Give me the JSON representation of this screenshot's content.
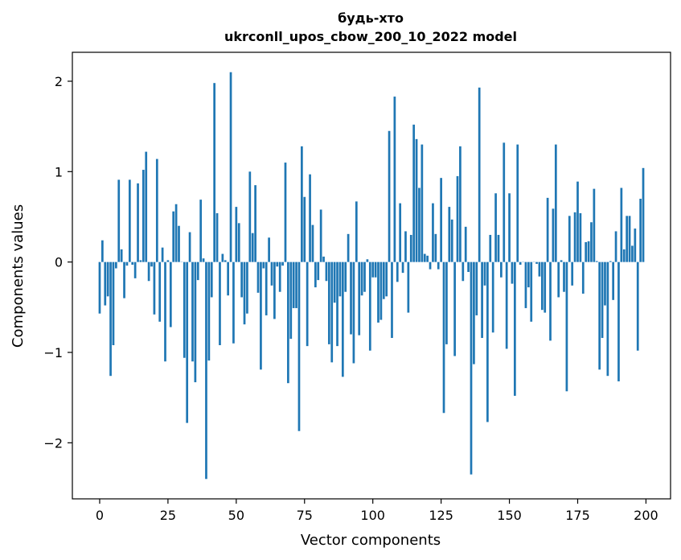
{
  "chart_data": {
    "type": "bar",
    "title": "будь-хто",
    "subtitle": "ukrconll_upos_cbow_200_10_2022 model",
    "xlabel": "Vector components",
    "ylabel": "Components values",
    "xlim": [
      -10,
      209
    ],
    "ylim": [
      -2.62,
      2.32
    ],
    "xticks": [
      0,
      25,
      50,
      75,
      100,
      125,
      150,
      175,
      200
    ],
    "yticks": [
      -2,
      -1,
      0,
      1,
      2
    ],
    "ytick_labels": [
      "−2",
      "−1",
      "0",
      "1",
      "2"
    ],
    "bar_color": "#1f77b4",
    "grid": false,
    "values": [
      -0.57,
      0.24,
      -0.48,
      -0.38,
      -1.26,
      -0.92,
      -0.07,
      0.91,
      0.14,
      -0.4,
      -0.04,
      0.91,
      -0.03,
      -0.18,
      0.87,
      0.02,
      1.02,
      1.22,
      -0.21,
      -0.05,
      -0.58,
      1.14,
      -0.66,
      0.16,
      -1.1,
      0.02,
      -0.72,
      0.56,
      0.64,
      0.4,
      0.0,
      -1.06,
      -1.78,
      0.33,
      -1.1,
      -1.33,
      -0.2,
      0.69,
      0.04,
      -2.4,
      -1.09,
      -0.39,
      1.98,
      0.54,
      -0.92,
      0.09,
      0.02,
      -0.37,
      2.1,
      -0.9,
      0.61,
      0.43,
      -0.39,
      -0.69,
      -0.57,
      1.0,
      0.32,
      0.85,
      -0.34,
      -1.19,
      -0.07,
      -0.59,
      0.27,
      -0.26,
      -0.63,
      -0.05,
      -0.33,
      -0.04,
      1.1,
      -1.34,
      -0.85,
      -0.51,
      -0.51,
      -1.87,
      1.28,
      0.72,
      -0.93,
      0.97,
      0.41,
      -0.28,
      -0.2,
      0.58,
      0.06,
      -0.21,
      -0.91,
      -1.11,
      -0.45,
      -0.93,
      -0.38,
      -1.27,
      -0.33,
      0.31,
      -0.8,
      -1.12,
      0.67,
      -0.81,
      -0.37,
      -0.33,
      0.03,
      -0.98,
      -0.17,
      -0.17,
      -0.67,
      -0.64,
      -0.41,
      -0.38,
      1.45,
      -0.84,
      1.83,
      -0.22,
      0.65,
      -0.12,
      0.34,
      -0.56,
      0.3,
      1.52,
      1.36,
      0.82,
      1.3,
      0.09,
      0.07,
      -0.08,
      0.65,
      0.31,
      -0.08,
      0.93,
      -1.67,
      -0.91,
      0.61,
      0.47,
      -1.04,
      0.95,
      1.28,
      -0.21,
      0.39,
      -0.11,
      -2.35,
      -1.13,
      -0.59,
      1.93,
      -0.84,
      -0.26,
      -1.77,
      0.3,
      -0.78,
      0.76,
      0.3,
      -0.17,
      1.32,
      -0.96,
      0.76,
      -0.24,
      -1.48,
      1.3,
      -0.03,
      0.0,
      -0.51,
      -0.28,
      -0.66,
      0.0,
      -0.02,
      -0.16,
      -0.53,
      -0.56,
      0.71,
      -0.87,
      0.59,
      1.3,
      -0.39,
      0.02,
      -0.33,
      -1.43,
      0.51,
      -0.26,
      0.55,
      0.89,
      0.54,
      -0.35,
      0.22,
      0.23,
      0.44,
      0.81,
      0.01,
      -1.19,
      -0.84,
      -0.48,
      -1.26,
      0.01,
      -0.42,
      0.34,
      -1.32,
      0.82,
      0.14,
      0.51,
      0.51,
      0.18,
      0.37,
      -0.98,
      0.7,
      1.04
    ]
  }
}
